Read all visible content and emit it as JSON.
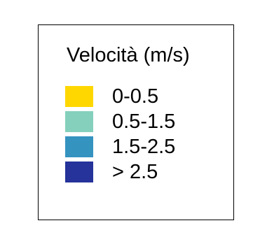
{
  "legend": {
    "title": "Velocità (m/s)",
    "items": [
      {
        "label": "0-0.5",
        "color": "#FFD700"
      },
      {
        "label": "0.5-1.5",
        "color": "#85D0BC"
      },
      {
        "label": "1.5-2.5",
        "color": "#3593C0"
      },
      {
        "label": "> 2.5",
        "color": "#25339A"
      }
    ]
  },
  "chart_data": {
    "type": "legend",
    "title": "Velocità (m/s)",
    "categories": [
      "0-0.5",
      "0.5-1.5",
      "1.5-2.5",
      "> 2.5"
    ],
    "colors": [
      "#FFD700",
      "#85D0BC",
      "#3593C0",
      "#25339A"
    ]
  }
}
